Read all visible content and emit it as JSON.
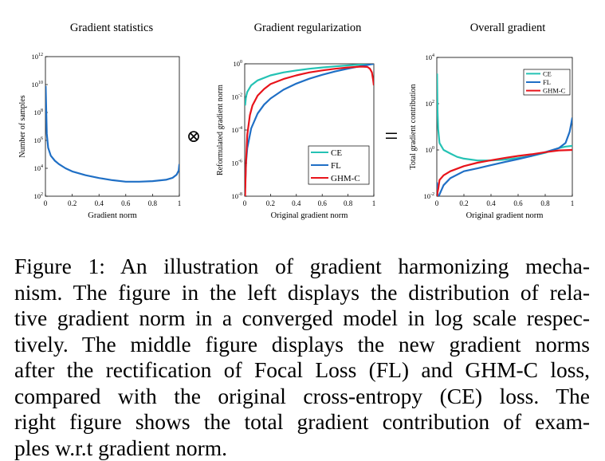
{
  "chart_data": [
    {
      "type": "line",
      "title": "Gradient statistics",
      "xlabel": "Gradient norm",
      "ylabel": "Number of samples",
      "xlim": [
        0,
        1
      ],
      "ylim": [
        100,
        1000000000000
      ],
      "yscale": "log",
      "x_ticks": [
        "0",
        "0.2",
        "0.4",
        "0.6",
        "0.8",
        "1"
      ],
      "y_ticks": [
        {
          "base": "10",
          "exp": "2"
        },
        {
          "base": "10",
          "exp": "4"
        },
        {
          "base": "10",
          "exp": "6"
        },
        {
          "base": "10",
          "exp": "8"
        },
        {
          "base": "10",
          "exp": "10"
        },
        {
          "base": "10",
          "exp": "12"
        }
      ],
      "grid": false,
      "series": [
        {
          "color": "#1f6fc5",
          "x": [
            0.002,
            0.01,
            0.02,
            0.04,
            0.07,
            0.1,
            0.15,
            0.2,
            0.3,
            0.4,
            0.5,
            0.6,
            0.7,
            0.8,
            0.9,
            0.95,
            0.98,
            0.995,
            1.0
          ],
          "y": [
            8000000000.0,
            3000000.0,
            300000,
            80000,
            35000,
            20000,
            10000,
            6000,
            3200,
            2000,
            1400,
            1100,
            1100,
            1200,
            1500,
            2100,
            3500,
            7000,
            20000
          ]
        }
      ]
    },
    {
      "type": "line",
      "title": "Gradient regularization",
      "xlabel": "Original gradient norm",
      "ylabel": "Reformulated gradient norm",
      "xlim": [
        0,
        1
      ],
      "ylim": [
        1e-08,
        1
      ],
      "yscale": "log",
      "x_ticks": [
        "0",
        "0.2",
        "0.4",
        "0.6",
        "0.8",
        "1"
      ],
      "y_ticks": [
        {
          "base": "10",
          "exp": "-8"
        },
        {
          "base": "10",
          "exp": "-6"
        },
        {
          "base": "10",
          "exp": "-4"
        },
        {
          "base": "10",
          "exp": "-2"
        },
        {
          "base": "10",
          "exp": "0"
        }
      ],
      "legend": "bottom-right",
      "grid": false,
      "series": [
        {
          "name": "CE",
          "color": "#25c2b4",
          "x": [
            0.003,
            0.01,
            0.02,
            0.05,
            0.1,
            0.2,
            0.3,
            0.4,
            0.5,
            0.6,
            0.7,
            0.8,
            0.9,
            1.0
          ],
          "y": [
            0.003,
            0.01,
            0.02,
            0.05,
            0.1,
            0.2,
            0.3,
            0.4,
            0.5,
            0.6,
            0.7,
            0.8,
            0.9,
            1.0
          ]
        },
        {
          "name": "FL",
          "color": "#1f6fc5",
          "x": [
            0.003,
            0.01,
            0.02,
            0.05,
            0.1,
            0.15,
            0.2,
            0.3,
            0.4,
            0.5,
            0.6,
            0.7,
            0.8,
            0.9,
            1.0
          ],
          "y": [
            3e-08,
            1e-06,
            8e-06,
            0.000125,
            0.001,
            0.0034,
            0.008,
            0.027,
            0.064,
            0.125,
            0.216,
            0.343,
            0.512,
            0.729,
            1.0
          ]
        },
        {
          "name": "GHM-C",
          "color": "#e8141b",
          "x": [
            0.003,
            0.006,
            0.01,
            0.02,
            0.04,
            0.06,
            0.1,
            0.15,
            0.2,
            0.3,
            0.4,
            0.5,
            0.6,
            0.7,
            0.8,
            0.9,
            0.95,
            0.97,
            0.985,
            0.995,
            1.0
          ],
          "y": [
            1e-08,
            1e-07,
            1e-06,
            5e-05,
            0.0008,
            0.003,
            0.012,
            0.03,
            0.06,
            0.12,
            0.2,
            0.3,
            0.4,
            0.5,
            0.6,
            0.68,
            0.65,
            0.5,
            0.3,
            0.1,
            0.05
          ]
        }
      ]
    },
    {
      "type": "line",
      "title": "Overall gradient",
      "xlabel": "Original gradient norm",
      "ylabel": "Total gradient contribution",
      "xlim": [
        0,
        1
      ],
      "ylim": [
        0.01,
        10000
      ],
      "yscale": "log",
      "x_ticks": [
        "0",
        "0.2",
        "0.4",
        "0.6",
        "0.8",
        "1"
      ],
      "y_ticks": [
        {
          "base": "10",
          "exp": "-2"
        },
        {
          "base": "10",
          "exp": "0"
        },
        {
          "base": "10",
          "exp": "2"
        },
        {
          "base": "10",
          "exp": "4"
        }
      ],
      "legend": "top-right",
      "grid": false,
      "series": [
        {
          "name": "CE",
          "color": "#25c2b4",
          "x": [
            0.002,
            0.005,
            0.01,
            0.02,
            0.05,
            0.1,
            0.15,
            0.2,
            0.3,
            0.4,
            0.5,
            0.6,
            0.7,
            0.8,
            0.9,
            0.95,
            1.0
          ],
          "y": [
            2000,
            50,
            8,
            2,
            1,
            0.7,
            0.5,
            0.42,
            0.35,
            0.35,
            0.38,
            0.45,
            0.55,
            0.75,
            1.2,
            1.4,
            1.5
          ]
        },
        {
          "name": "FL",
          "color": "#1f6fc5",
          "x": [
            0.002,
            0.005,
            0.01,
            0.02,
            0.05,
            0.1,
            0.2,
            0.3,
            0.4,
            0.5,
            0.6,
            0.7,
            0.8,
            0.9,
            0.95,
            0.98,
            0.99,
            1.0
          ],
          "y": [
            0.04,
            0.01,
            0.008,
            0.012,
            0.03,
            0.06,
            0.12,
            0.16,
            0.22,
            0.3,
            0.4,
            0.55,
            0.8,
            1.2,
            2,
            6,
            12,
            25
          ]
        },
        {
          "name": "GHM-C",
          "color": "#e8141b",
          "x": [
            0.002,
            0.005,
            0.01,
            0.02,
            0.05,
            0.1,
            0.2,
            0.3,
            0.4,
            0.5,
            0.6,
            0.7,
            0.8,
            0.9,
            1.0
          ],
          "y": [
            0.01,
            0.015,
            0.02,
            0.05,
            0.08,
            0.12,
            0.2,
            0.28,
            0.36,
            0.45,
            0.55,
            0.65,
            0.8,
            0.95,
            1.0
          ]
        }
      ]
    }
  ],
  "operators": {
    "between_1_2": "⊗",
    "between_2_3": "="
  },
  "caption": {
    "lines": [
      "Figure 1: An illustration of gradient harmonizing mecha-",
      "nism. The figure in the left displays the distribution of rela-",
      "tive gradient norm in a converged model in log scale respec-",
      "tively. The middle figure displays the new gradient norms",
      "after the rectification of Focal Loss (FL) and GHM-C loss,",
      "compared with the original cross-entropy (CE) loss. The",
      "right figure shows the total gradient contribution of exam-",
      "ples w.r.t gradient norm."
    ]
  }
}
